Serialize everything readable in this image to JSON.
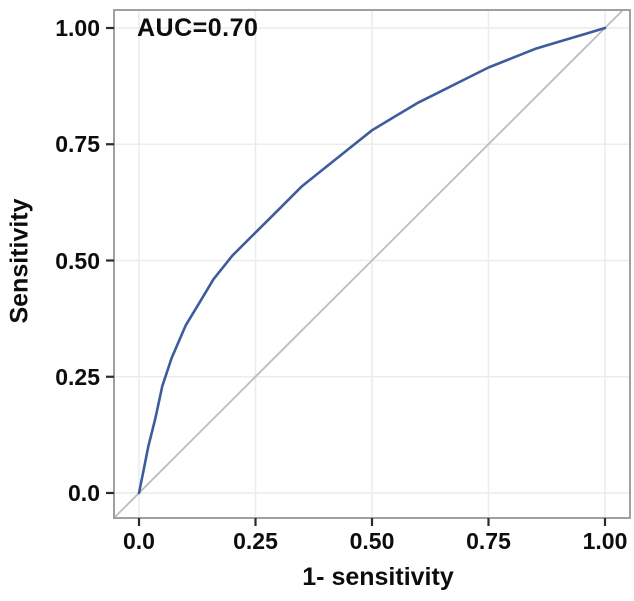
{
  "chart_data": {
    "type": "line",
    "title": "",
    "annotation": "AUC=0.70",
    "auc": 0.7,
    "xlabel": "1- sensitivity",
    "ylabel": "Sensitivity",
    "xlim": [
      0,
      1
    ],
    "ylim": [
      0,
      1
    ],
    "grid": "major-only",
    "legend": "none",
    "x_tick_values": [
      0,
      0.25,
      0.5,
      0.75,
      1.0
    ],
    "x_tick_labels": [
      "0.0",
      "0.25",
      "0.50",
      "0.75",
      "1.00"
    ],
    "y_tick_values": [
      0,
      0.25,
      0.5,
      0.75,
      1.0
    ],
    "y_tick_labels": [
      "0.0",
      "0.25",
      "0.50",
      "0.75",
      "1.00"
    ],
    "series": [
      {
        "name": "ROC curve",
        "color": "#3d5c9e",
        "width": 2.6,
        "extend_full_panel": false,
        "x": [
          0,
          0.01,
          0.02,
          0.035,
          0.05,
          0.07,
          0.1,
          0.13,
          0.16,
          0.2,
          0.25,
          0.3,
          0.35,
          0.4,
          0.45,
          0.5,
          0.55,
          0.6,
          0.65,
          0.7,
          0.75,
          0.8,
          0.85,
          0.9,
          0.95,
          1.0
        ],
        "y": [
          0,
          0.05,
          0.1,
          0.16,
          0.23,
          0.29,
          0.36,
          0.41,
          0.46,
          0.51,
          0.56,
          0.61,
          0.66,
          0.7,
          0.74,
          0.78,
          0.81,
          0.84,
          0.865,
          0.89,
          0.915,
          0.935,
          0.955,
          0.97,
          0.985,
          1.0
        ]
      },
      {
        "name": "chance diagonal",
        "color": "#bdbdbd",
        "width": 1.8,
        "extend_full_panel": true,
        "x": [
          0,
          1
        ],
        "y": [
          0,
          1
        ]
      }
    ],
    "colors": {
      "background": "#ffffff",
      "grid": "#ececec",
      "panel_border": "#a0a0a0",
      "tick": "#2b2b2b",
      "text": "#0d0d0d"
    }
  }
}
